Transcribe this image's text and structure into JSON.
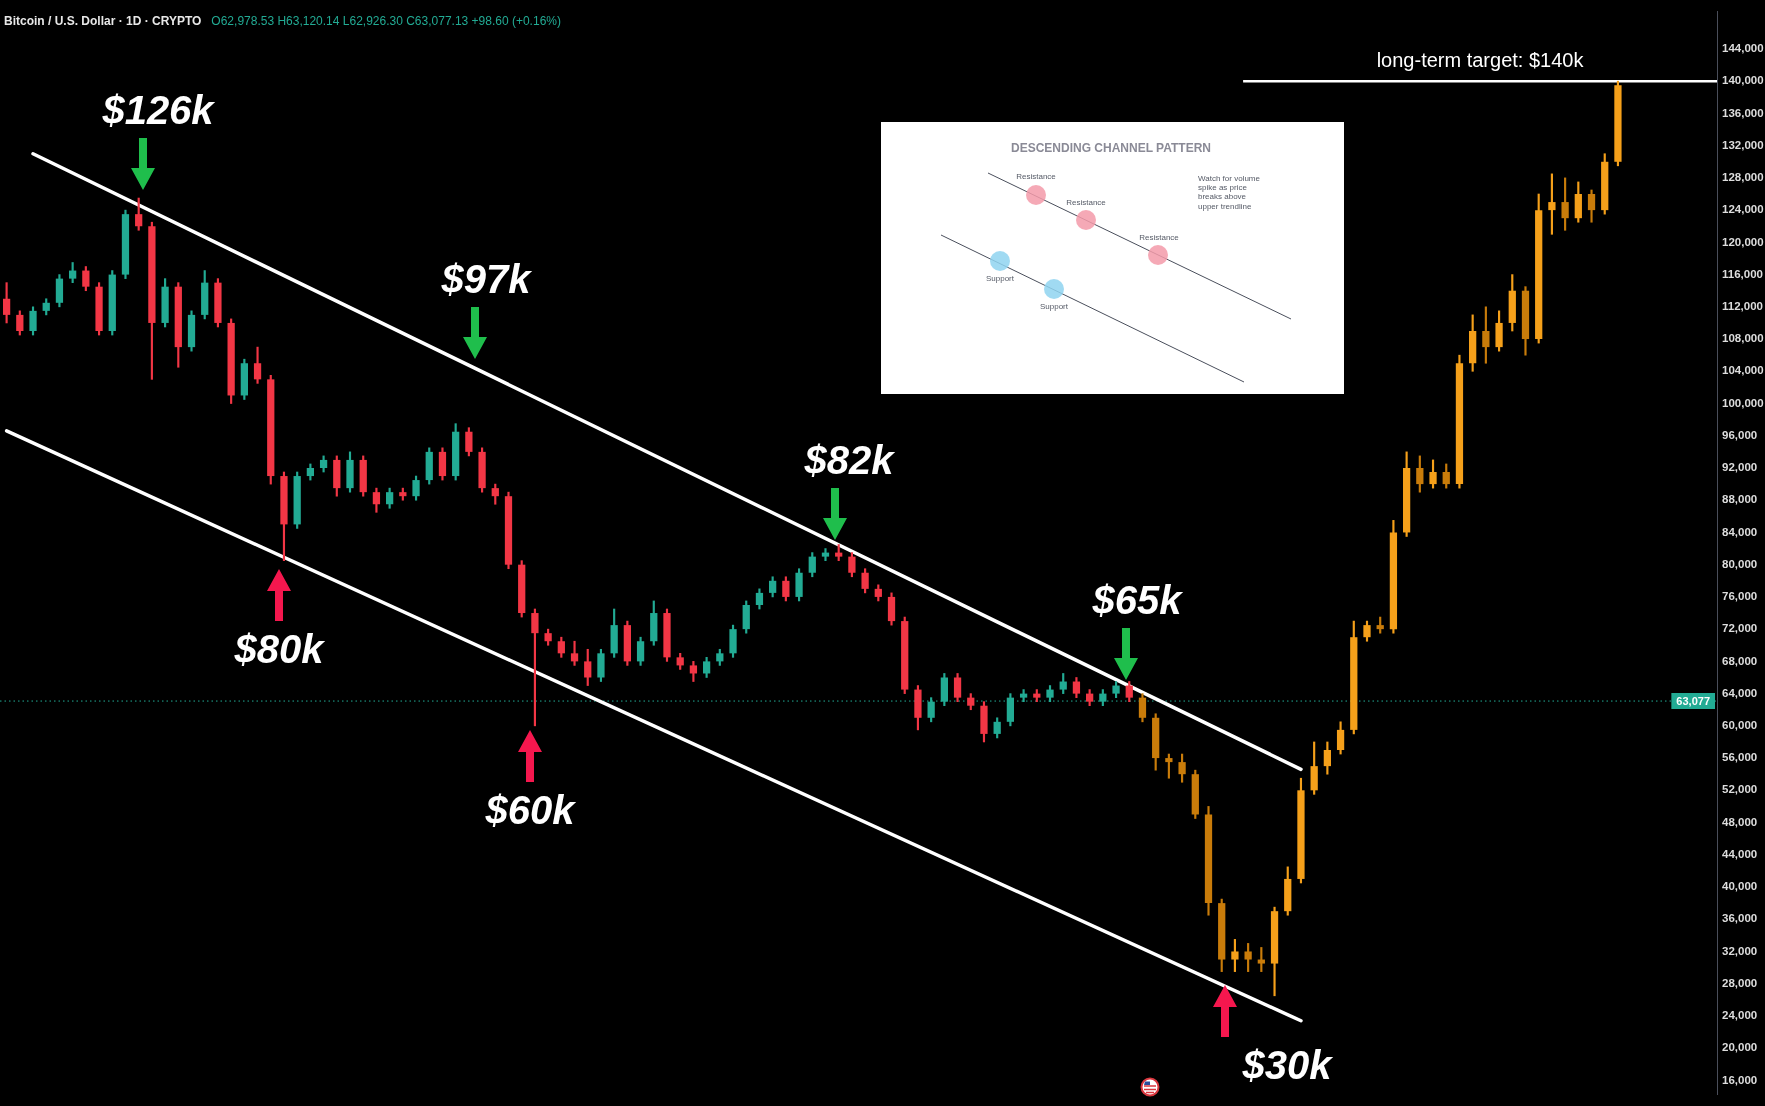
{
  "chart_data": {
    "type": "candlestick",
    "title": "Bitcoin / U.S. Dollar · 1D · CRYPTO",
    "subtitle": "O62,978.53 H63,120.14 L62,926.30 C63,077.13 +98.60 (+0.16%)",
    "categories": [
      null,
      null,
      null,
      null,
      null,
      null,
      null,
      null,
      null,
      null,
      null,
      null,
      null,
      null,
      null,
      null,
      null,
      null,
      null,
      null,
      null,
      null,
      null,
      null,
      null,
      null,
      null,
      null,
      null,
      null,
      null,
      null,
      null,
      null,
      null,
      null,
      null,
      null,
      null,
      null,
      null,
      null,
      null,
      null,
      null,
      null,
      null,
      null,
      null,
      null,
      null,
      null,
      null,
      null,
      null,
      null,
      null,
      null,
      null,
      null,
      null,
      null,
      null,
      null,
      null,
      null,
      null,
      null,
      null,
      null,
      null,
      null,
      null,
      null,
      null,
      null,
      null,
      null,
      null,
      null,
      null,
      null,
      null,
      null,
      null,
      null,
      null,
      null,
      null,
      null,
      null,
      null,
      null,
      null,
      null,
      null,
      null,
      null,
      null,
      null,
      null,
      null,
      null,
      null,
      null,
      null,
      null,
      null,
      null,
      null,
      null,
      null,
      null,
      null,
      null,
      null,
      null,
      null,
      null,
      null,
      null,
      null,
      null,
      null,
      null,
      null,
      null,
      null,
      null,
      null
    ],
    "series": [
      {
        "colors": [
          "#f23645",
          "#f23645",
          "#22ab94",
          "#22ab94",
          "#22ab94",
          "#22ab94",
          "#f23645",
          "#f23645",
          "#22ab94",
          "#22ab94",
          "#f23645",
          "#f23645",
          "#22ab94",
          "#f23645",
          "#22ab94",
          "#22ab94",
          "#f23645",
          "#f23645",
          "#22ab94",
          "#f23645",
          "#f23645",
          "#f23645",
          "#22ab94",
          "#22ab94",
          "#22ab94",
          "#f23645",
          "#22ab94",
          "#f23645",
          "#f23645",
          "#22ab94",
          "#f23645",
          "#22ab94",
          "#22ab94",
          "#f23645",
          "#22ab94",
          "#f23645",
          "#f23645",
          "#f23645",
          "#f23645",
          "#f23645",
          "#f23645",
          "#f23645",
          "#f23645",
          "#f23645",
          "#f23645",
          "#22ab94",
          "#22ab94",
          "#f23645",
          "#22ab94",
          "#22ab94",
          "#f23645",
          "#f23645",
          "#f23645",
          "#22ab94",
          "#22ab94",
          "#22ab94",
          "#22ab94",
          "#22ab94",
          "#22ab94",
          "#f23645",
          "#22ab94",
          "#22ab94",
          "#22ab94",
          "#f23645",
          "#f23645",
          "#f23645",
          "#f23645",
          "#f23645",
          "#f23645",
          "#f23645",
          "#22ab94",
          "#22ab94",
          "#f23645",
          "#f23645",
          "#f23645",
          "#22ab94",
          "#22ab94",
          "#22ab94",
          "#f23645",
          "#22ab94",
          "#22ab94",
          "#f23645",
          "#f23645",
          "#22ab94",
          "#22ab94",
          "#f23645",
          null,
          null,
          null,
          null,
          null,
          null,
          null,
          null,
          null,
          null,
          null,
          null,
          null,
          null,
          null,
          null,
          null,
          null,
          null,
          null,
          null,
          null,
          null,
          null,
          null,
          null,
          null,
          null,
          null,
          null,
          null,
          null,
          null,
          null,
          null,
          null,
          null,
          null,
          null,
          null,
          null,
          null,
          null,
          null
        ],
        "ohlc": [
          [
            113000,
            115000,
            110000,
            111000
          ],
          [
            111000,
            111500,
            108500,
            109000
          ],
          [
            109000,
            112000,
            108500,
            111500
          ],
          [
            111500,
            113000,
            111000,
            112500
          ],
          [
            112500,
            116000,
            112000,
            115500
          ],
          [
            115500,
            117500,
            115000,
            116500
          ],
          [
            116500,
            117000,
            114000,
            114500
          ],
          [
            114500,
            115000,
            108500,
            109000
          ],
          [
            109000,
            116500,
            108500,
            116000
          ],
          [
            116000,
            124000,
            115500,
            123500
          ],
          [
            123500,
            125500,
            121500,
            122000
          ],
          [
            122000,
            122500,
            103000,
            110000
          ],
          [
            110000,
            115500,
            109500,
            114500
          ],
          [
            114500,
            115000,
            104500,
            107000
          ],
          [
            107000,
            111500,
            106500,
            111000
          ],
          [
            111000,
            116500,
            110500,
            115000
          ],
          [
            115000,
            115500,
            109500,
            110000
          ],
          [
            110000,
            110500,
            100000,
            101000
          ],
          [
            101000,
            105500,
            100500,
            105000
          ],
          [
            105000,
            107000,
            102500,
            103000
          ],
          [
            103000,
            103500,
            90000,
            91000
          ],
          [
            91000,
            91500,
            80500,
            85000
          ],
          [
            85000,
            91500,
            84500,
            91000
          ],
          [
            91000,
            92500,
            90500,
            92000
          ],
          [
            92000,
            93500,
            91500,
            93000
          ],
          [
            93000,
            93500,
            88500,
            89500
          ],
          [
            89500,
            94000,
            89000,
            93000
          ],
          [
            93000,
            93500,
            88500,
            89000
          ],
          [
            89000,
            89500,
            86500,
            87500
          ],
          [
            87500,
            89500,
            87000,
            89000
          ],
          [
            89000,
            89500,
            88000,
            88500
          ],
          [
            88500,
            91000,
            88000,
            90500
          ],
          [
            90500,
            94500,
            90000,
            94000
          ],
          [
            94000,
            94500,
            90500,
            91000
          ],
          [
            91000,
            97500,
            90500,
            96500
          ],
          [
            96500,
            97000,
            93500,
            94000
          ],
          [
            94000,
            94500,
            89000,
            89500
          ],
          [
            89500,
            90000,
            87500,
            88500
          ],
          [
            88500,
            89000,
            79500,
            80000
          ],
          [
            80000,
            80500,
            73500,
            74000
          ],
          [
            74000,
            74500,
            60000,
            71500
          ],
          [
            71500,
            72000,
            70000,
            70500
          ],
          [
            70500,
            71000,
            68500,
            69000
          ],
          [
            69000,
            70500,
            67500,
            68000
          ],
          [
            68000,
            69500,
            65000,
            66000
          ],
          [
            66000,
            69500,
            65500,
            69000
          ],
          [
            69000,
            74500,
            68500,
            72500
          ],
          [
            72500,
            73000,
            67500,
            68000
          ],
          [
            68000,
            71000,
            67500,
            70500
          ],
          [
            70500,
            75500,
            70000,
            74000
          ],
          [
            74000,
            74500,
            68000,
            68500
          ],
          [
            68500,
            69000,
            67000,
            67500
          ],
          [
            67500,
            68000,
            65500,
            66500
          ],
          [
            66500,
            68500,
            66000,
            68000
          ],
          [
            68000,
            69500,
            67500,
            69000
          ],
          [
            69000,
            72500,
            68500,
            72000
          ],
          [
            72000,
            75500,
            71500,
            75000
          ],
          [
            75000,
            77000,
            74500,
            76500
          ],
          [
            76500,
            78500,
            76000,
            78000
          ],
          [
            78000,
            78500,
            75500,
            76000
          ],
          [
            76000,
            79500,
            75500,
            79000
          ],
          [
            79000,
            81500,
            78500,
            81000
          ],
          [
            81000,
            82000,
            80500,
            81500
          ],
          [
            81500,
            82500,
            80500,
            81000
          ],
          [
            81000,
            81500,
            78500,
            79000
          ],
          [
            79000,
            79500,
            76500,
            77000
          ],
          [
            77000,
            77500,
            75500,
            76000
          ],
          [
            76000,
            76500,
            72500,
            73000
          ],
          [
            73000,
            73500,
            64000,
            64500
          ],
          [
            64500,
            65000,
            59500,
            61000
          ],
          [
            61000,
            63500,
            60500,
            63000
          ],
          [
            63000,
            66500,
            62500,
            66000
          ],
          [
            66000,
            66500,
            63000,
            63500
          ],
          [
            63500,
            64000,
            62000,
            62500
          ],
          [
            62500,
            63000,
            58000,
            59000
          ],
          [
            59000,
            61000,
            58500,
            60500
          ],
          [
            60500,
            64000,
            60000,
            63500
          ],
          [
            63500,
            64500,
            63000,
            64000
          ],
          [
            64000,
            64500,
            63000,
            63500
          ],
          [
            63500,
            65000,
            63000,
            64500
          ],
          [
            64500,
            66500,
            64000,
            65500
          ],
          [
            65500,
            66000,
            63500,
            64000
          ],
          [
            64000,
            64500,
            62500,
            63000
          ],
          [
            63000,
            64500,
            62500,
            64000
          ],
          [
            64000,
            65500,
            63500,
            65000
          ],
          [
            65000,
            65500,
            63000,
            63500
          ],
          null,
          null,
          null,
          null,
          null,
          null,
          null,
          null,
          null,
          null,
          null,
          null,
          null,
          null,
          null,
          null,
          null,
          null,
          null,
          null,
          null,
          null,
          null,
          null,
          null,
          null,
          null,
          null,
          null,
          null,
          null,
          null,
          null,
          null,
          null,
          null,
          null,
          null,
          null,
          null,
          null,
          null,
          null,
          null
        ]
      },
      {
        "colors": [
          null,
          null,
          null,
          null,
          null,
          null,
          null,
          null,
          null,
          null,
          null,
          null,
          null,
          null,
          null,
          null,
          null,
          null,
          null,
          null,
          null,
          null,
          null,
          null,
          null,
          null,
          null,
          null,
          null,
          null,
          null,
          null,
          null,
          null,
          null,
          null,
          null,
          null,
          null,
          null,
          null,
          null,
          null,
          null,
          null,
          null,
          null,
          null,
          null,
          null,
          null,
          null,
          null,
          null,
          null,
          null,
          null,
          null,
          null,
          null,
          null,
          null,
          null,
          null,
          null,
          null,
          null,
          null,
          null,
          null,
          null,
          null,
          null,
          null,
          null,
          null,
          null,
          null,
          null,
          null,
          null,
          null,
          null,
          null,
          null,
          null,
          "#c97c0a",
          "#c97c0a",
          "#c97c0a",
          "#c97c0a",
          "#c97c0a",
          "#c97c0a",
          "#c97c0a",
          "#f5a01a",
          "#c97c0a",
          "#c97c0a",
          "#f5a01a",
          "#f5a01a",
          "#f5a01a",
          "#f5a01a",
          "#f5a01a",
          "#f5a01a",
          "#f5a01a",
          "#f5a01a",
          "#c97c0a",
          "#f5a01a",
          "#f5a01a",
          "#c97c0a",
          "#f5a01a",
          "#c97c0a",
          "#f5a01a",
          "#f5a01a",
          "#c97c0a",
          "#f5a01a",
          "#f5a01a",
          "#c97c0a",
          "#f5a01a",
          "#f5a01a",
          "#c97c0a",
          "#f5a01a",
          "#c97c0a",
          "#f5a01a",
          "#f5a01a",
          null,
          null,
          null,
          null,
          null,
          null,
          null
        ],
        "ohlc": [
          null,
          null,
          null,
          null,
          null,
          null,
          null,
          null,
          null,
          null,
          null,
          null,
          null,
          null,
          null,
          null,
          null,
          null,
          null,
          null,
          null,
          null,
          null,
          null,
          null,
          null,
          null,
          null,
          null,
          null,
          null,
          null,
          null,
          null,
          null,
          null,
          null,
          null,
          null,
          null,
          null,
          null,
          null,
          null,
          null,
          null,
          null,
          null,
          null,
          null,
          null,
          null,
          null,
          null,
          null,
          null,
          null,
          null,
          null,
          null,
          null,
          null,
          null,
          null,
          null,
          null,
          null,
          null,
          null,
          null,
          null,
          null,
          null,
          null,
          null,
          null,
          null,
          null,
          null,
          null,
          null,
          null,
          null,
          null,
          null,
          null,
          [
            63500,
            64000,
            60500,
            61000
          ],
          [
            61000,
            61500,
            54500,
            56000
          ],
          [
            56000,
            56500,
            53500,
            55500
          ],
          [
            55500,
            56500,
            53000,
            54000
          ],
          [
            54000,
            54500,
            48500,
            49000
          ],
          [
            49000,
            50000,
            36500,
            38000
          ],
          [
            38000,
            38500,
            29500,
            31000
          ],
          [
            31000,
            33500,
            29500,
            32000
          ],
          [
            32000,
            33000,
            29500,
            31000
          ],
          [
            31000,
            32500,
            29500,
            30500
          ],
          [
            30500,
            37500,
            26500,
            37000
          ],
          [
            37000,
            42500,
            36500,
            41000
          ],
          [
            41000,
            53500,
            40500,
            52000
          ],
          [
            52000,
            58000,
            51500,
            55000
          ],
          [
            55000,
            58000,
            54000,
            57000
          ],
          [
            57000,
            60500,
            56500,
            59500
          ],
          [
            59500,
            73000,
            59000,
            71000
          ],
          [
            71000,
            73000,
            70500,
            72500
          ],
          [
            72500,
            73500,
            71500,
            72000
          ],
          [
            72000,
            85500,
            71500,
            84000
          ],
          [
            84000,
            94000,
            83500,
            92000
          ],
          [
            92000,
            93500,
            89000,
            90000
          ],
          [
            90000,
            93000,
            89500,
            91500
          ],
          [
            91500,
            92500,
            89500,
            90000
          ],
          [
            90000,
            106000,
            89500,
            105000
          ],
          [
            105000,
            111000,
            104000,
            109000
          ],
          [
            109000,
            112000,
            105000,
            107000
          ],
          [
            107000,
            111500,
            106500,
            110000
          ],
          [
            110000,
            116000,
            109000,
            114000
          ],
          [
            114000,
            114500,
            106000,
            108000
          ],
          [
            108000,
            126000,
            107500,
            124000
          ],
          [
            124000,
            128500,
            121000,
            125000
          ],
          [
            125000,
            128000,
            121500,
            123000
          ],
          [
            123000,
            127500,
            122500,
            126000
          ],
          [
            126000,
            126500,
            122500,
            124000
          ],
          [
            124000,
            131000,
            123500,
            130000
          ],
          [
            130000,
            140000,
            129500,
            139500
          ],
          null,
          null,
          null,
          null,
          null,
          null,
          null
        ]
      },
      {
        "type": "line",
        "color": "#ffffff",
        "values": [
          null,
          null,
          131000,
          null,
          null,
          null,
          null,
          null,
          null,
          null,
          null,
          null,
          null,
          null,
          null,
          null,
          null,
          null,
          null,
          null,
          null,
          null,
          null,
          null,
          null,
          null,
          null,
          null,
          null,
          null,
          null,
          null,
          null,
          null,
          null,
          null,
          null,
          null,
          null,
          null,
          null,
          null,
          null,
          null,
          null,
          null,
          null,
          null,
          null,
          null,
          null,
          null,
          null,
          null,
          null,
          null,
          null,
          null,
          null,
          null,
          null,
          null,
          null,
          null,
          null,
          null,
          null,
          null,
          null,
          null,
          null,
          null,
          null,
          null,
          null,
          null,
          null,
          null,
          null,
          null,
          null,
          null,
          null,
          null,
          null,
          null,
          null,
          null,
          null,
          null,
          null,
          null,
          null,
          null,
          null,
          null,
          null,
          null,
          54600,
          null,
          null,
          null,
          null,
          null,
          null,
          null,
          null,
          null,
          null,
          null,
          null,
          null,
          null,
          null,
          null,
          null,
          null,
          null,
          null,
          null,
          null,
          null,
          null,
          null,
          null,
          null,
          null,
          null,
          null,
          null
        ]
      },
      {
        "type": "line",
        "color": "#ffffff",
        "values": [
          96600,
          null,
          null,
          null,
          null,
          null,
          null,
          null,
          null,
          null,
          null,
          null,
          null,
          null,
          null,
          null,
          null,
          null,
          null,
          null,
          null,
          null,
          null,
          null,
          null,
          null,
          null,
          null,
          null,
          null,
          null,
          null,
          null,
          null,
          null,
          null,
          null,
          null,
          null,
          null,
          null,
          null,
          null,
          null,
          null,
          null,
          null,
          null,
          null,
          null,
          null,
          null,
          null,
          null,
          null,
          null,
          null,
          null,
          null,
          null,
          null,
          null,
          null,
          null,
          null,
          null,
          null,
          null,
          null,
          null,
          null,
          null,
          null,
          null,
          null,
          null,
          null,
          null,
          null,
          null,
          null,
          null,
          null,
          null,
          null,
          null,
          null,
          null,
          null,
          null,
          null,
          null,
          null,
          null,
          null,
          null,
          null,
          null,
          23400,
          null,
          null,
          null,
          null,
          null,
          null,
          null,
          null,
          null,
          null,
          null,
          null,
          null,
          null,
          null,
          null,
          null,
          null,
          null,
          null,
          null,
          null,
          null,
          null,
          null,
          null,
          null,
          null,
          null,
          null,
          null
        ]
      }
    ],
    "ylim": [
      14300,
      148600
    ],
    "yticks": [
      {
        "value": 16000,
        "label": "16,000"
      },
      {
        "value": 20000,
        "label": "20,000"
      },
      {
        "value": 24000,
        "label": "24,000"
      },
      {
        "value": 28000,
        "label": "28,000"
      },
      {
        "value": 32000,
        "label": "32,000"
      },
      {
        "value": 36000,
        "label": "36,000"
      },
      {
        "value": 40000,
        "label": "40,000"
      },
      {
        "value": 44000,
        "label": "44,000"
      },
      {
        "value": 48000,
        "label": "48,000"
      },
      {
        "value": 52000,
        "label": "52,000"
      },
      {
        "value": 56000,
        "label": "56,000"
      },
      {
        "value": 60000,
        "label": "60,000"
      },
      {
        "value": 64000,
        "label": "64,000"
      },
      {
        "value": 68000,
        "label": "68,000"
      },
      {
        "value": 72000,
        "label": "72,000"
      },
      {
        "value": 76000,
        "label": "76,000"
      },
      {
        "value": 80000,
        "label": "80,000"
      },
      {
        "value": 84000,
        "label": "84,000"
      },
      {
        "value": 88000,
        "label": "88,000"
      },
      {
        "value": 92000,
        "label": "92,000"
      },
      {
        "value": 96000,
        "label": "96,000"
      },
      {
        "value": 100000,
        "label": "100,000"
      },
      {
        "value": 104000,
        "label": "104,000"
      },
      {
        "value": 108000,
        "label": "108,000"
      },
      {
        "value": 112000,
        "label": "112,000"
      },
      {
        "value": 116000,
        "label": "116,000"
      },
      {
        "value": 120000,
        "label": "120,000"
      },
      {
        "value": 124000,
        "label": "124,000"
      },
      {
        "value": 128000,
        "label": "128,000"
      },
      {
        "value": 132000,
        "label": "132,000"
      },
      {
        "value": 136000,
        "label": "136,000"
      },
      {
        "value": 140000,
        "label": "140,000"
      },
      {
        "value": 144000,
        "label": "144,000"
      }
    ],
    "tick_labels": "y",
    "grid": false,
    "legend": false,
    "ref_lines": [
      {
        "axis": "y",
        "value": 140000,
        "label": "long-term target: $140k",
        "color": "#ffffff"
      },
      {
        "axis": "y",
        "value": 63077,
        "label": "63,077",
        "color": "#22ab94",
        "line_style": "dotted"
      }
    ],
    "annotations": [
      "$126k",
      "$80k",
      "$97k",
      "$60k",
      "$82k",
      "$65k",
      "$30k",
      "DESCENDING CHANNEL PATTERN",
      "Resistance",
      "Resistance",
      "Resistance",
      "Support",
      "Support",
      "Watch for volume spike as price breaks above upper trendline"
    ]
  }
}
